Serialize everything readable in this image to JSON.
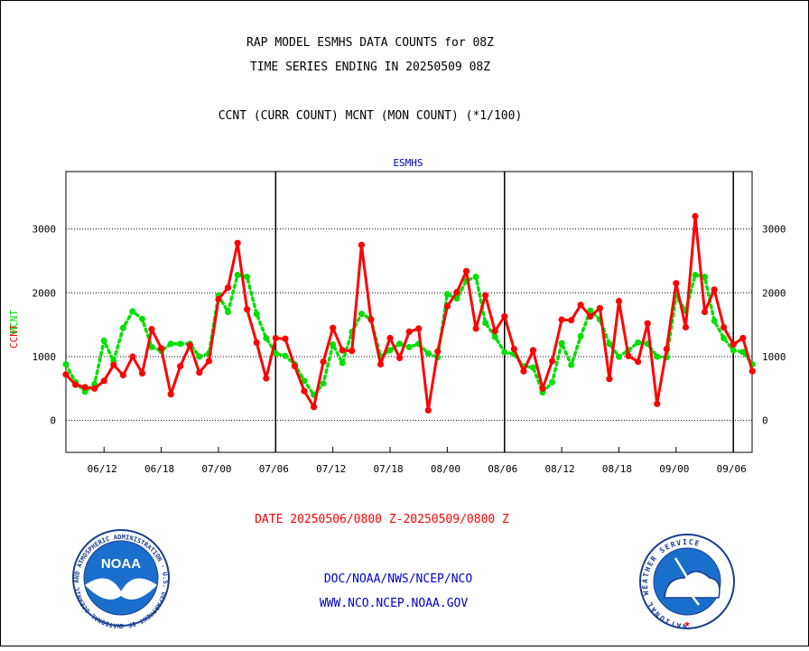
{
  "header": {
    "title_line1": "RAP MODEL ESMHS DATA COUNTS for 08Z",
    "title_line2": "TIME SERIES ENDING IN 20250509 08Z",
    "subtitle": "CCNT (CURR COUNT) MCNT (MON COUNT) (*1/100)"
  },
  "footer": {
    "date_range": "DATE 20250506/0800 Z-20250509/0800 Z",
    "org_path": "DOC/NOAA/NWS/NCEP/NCO",
    "website": "WWW.NCO.NCEP.NOAA.GOV"
  },
  "logos": {
    "noaa_text": "NOAA",
    "noaa_ring": "NATIONAL OCEANIC AND ATMOSPHERIC ADMINISTRATION · U.S. DEPARTMENT OF COMMERCE ·",
    "nws_ring": "NATIONAL WEATHER SERVICE"
  },
  "colors": {
    "ccnt": "#ff0000",
    "mcnt": "#00e000",
    "panel_title": "#0000cc",
    "footer_links": "#0000cc",
    "date_text": "#ff0000",
    "axis_text": "#000000"
  },
  "chart_data": {
    "type": "line",
    "panel_title": "ESMHS",
    "ylabel_left_a": "CCNT",
    "ylabel_left_b": "MCNT",
    "ylim": [
      -500,
      3900
    ],
    "y_ticks": [
      0,
      1000,
      2000,
      3000
    ],
    "y_tick_labels": [
      "0",
      "1000",
      "2000",
      "3000"
    ],
    "grid": "horizontal dotted at y ticks",
    "x_tick_labels": [
      "06/12",
      "06/18",
      "07/00",
      "07/06",
      "07/12",
      "07/18",
      "08/00",
      "08/06",
      "08/12",
      "08/18",
      "09/00",
      "09/06"
    ],
    "x_tick_index": [
      4,
      10,
      16,
      22,
      28,
      34,
      40,
      46,
      52,
      58,
      64,
      70
    ],
    "day_separator_index": [
      22,
      46,
      70
    ],
    "x_count": 73,
    "series": [
      {
        "name": "CCNT",
        "color": "#ff0000",
        "style": "solid",
        "values": [
          720,
          560,
          520,
          500,
          620,
          870,
          710,
          1000,
          740,
          1430,
          1130,
          410,
          850,
          1180,
          750,
          930,
          1900,
          2080,
          2780,
          1740,
          1220,
          660,
          1290,
          1280,
          850,
          460,
          210,
          920,
          1450,
          1100,
          1090,
          2750,
          1580,
          880,
          1290,
          980,
          1390,
          1440,
          160,
          1080,
          1790,
          2010,
          2340,
          1440,
          1960,
          1400,
          1630,
          1120,
          770,
          1100,
          500,
          930,
          1580,
          1570,
          1810,
          1630,
          1760,
          650,
          1870,
          1010,
          920,
          1520,
          260,
          1120,
          2150,
          1460,
          3200,
          1700,
          2050,
          1460,
          1190,
          1290,
          770
        ]
      },
      {
        "name": "MCNT",
        "color": "#00e000",
        "style": "dotted",
        "values": [
          880,
          600,
          450,
          570,
          1250,
          930,
          1450,
          1710,
          1590,
          1150,
          1090,
          1200,
          1200,
          1200,
          1000,
          1050,
          1960,
          1700,
          2280,
          2250,
          1670,
          1290,
          1050,
          1010,
          880,
          620,
          400,
          580,
          1190,
          900,
          1390,
          1670,
          1590,
          1000,
          1100,
          1200,
          1150,
          1200,
          1050,
          990,
          1980,
          1910,
          2190,
          2250,
          1530,
          1310,
          1070,
          1040,
          850,
          830,
          440,
          600,
          1210,
          870,
          1320,
          1720,
          1580,
          1200,
          1000,
          1100,
          1220,
          1200,
          1000,
          990,
          1950,
          1720,
          2280,
          2250,
          1560,
          1290,
          1100,
          1070,
          880
        ]
      }
    ]
  }
}
